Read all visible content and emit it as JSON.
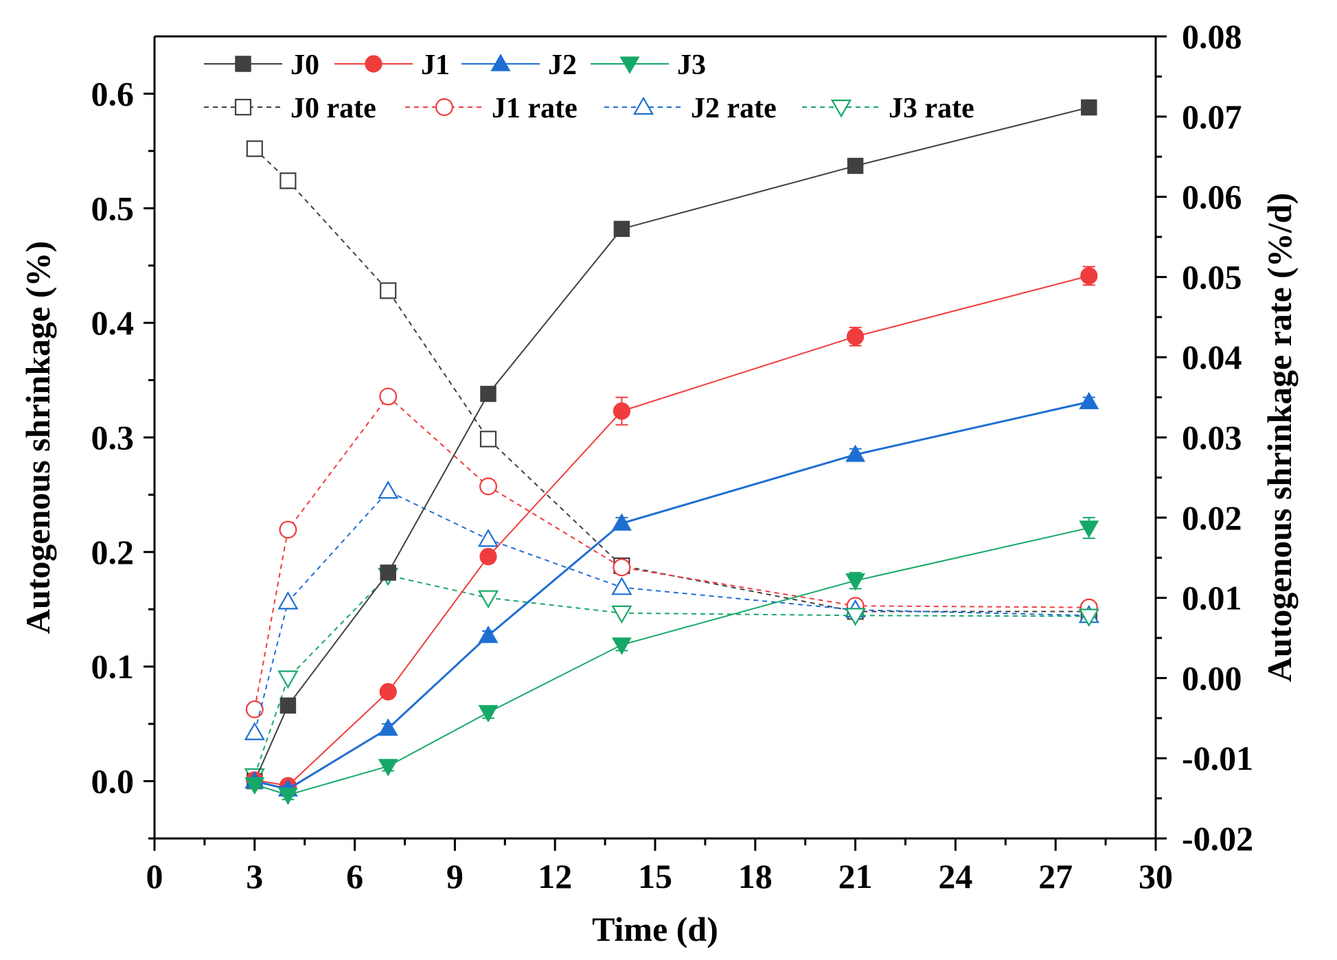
{
  "chart_data": {
    "type": "line",
    "title": "",
    "xlabel": "Time (d)",
    "ylabel": "Autogenous shrinkage (%)",
    "y2label": "Autogenous shrinkage rate (%/d)",
    "xlim": [
      0,
      30
    ],
    "ylim": [
      -0.05,
      0.65
    ],
    "y2lim": [
      -0.02,
      0.08
    ],
    "x_ticks": [
      0,
      3,
      6,
      9,
      12,
      15,
      18,
      21,
      24,
      27,
      30
    ],
    "y_ticks": [
      0.0,
      0.1,
      0.2,
      0.3,
      0.4,
      0.5,
      0.6
    ],
    "y_tick_labels": [
      "0.0",
      "0.1",
      "0.2",
      "0.3",
      "0.4",
      "0.5",
      "0.6"
    ],
    "y2_ticks": [
      -0.02,
      -0.01,
      0.0,
      0.01,
      0.02,
      0.03,
      0.04,
      0.05,
      0.06,
      0.07,
      0.08
    ],
    "y2_tick_labels": [
      "-0.02",
      "-0.01",
      "0.00",
      "0.01",
      "0.02",
      "0.03",
      "0.04",
      "0.05",
      "0.06",
      "0.07",
      "0.08"
    ],
    "grid": false,
    "legend_position": "top-left",
    "series": [
      {
        "name": "J0",
        "axis": "left",
        "color": "#404040",
        "marker": "square",
        "filled": true,
        "dashed": false,
        "x": [
          3,
          4,
          7,
          10,
          14,
          21,
          28
        ],
        "values": [
          0.0,
          0.066,
          0.182,
          0.338,
          0.482,
          0.537,
          0.588
        ],
        "errors": [
          0.003,
          0.004,
          0.004,
          0.005,
          0.005,
          0.004,
          0.004
        ]
      },
      {
        "name": "J1",
        "axis": "left",
        "color": "#f03c3c",
        "marker": "circle",
        "filled": true,
        "dashed": false,
        "x": [
          3,
          4,
          7,
          10,
          14,
          21,
          28
        ],
        "values": [
          0.001,
          -0.004,
          0.078,
          0.196,
          0.323,
          0.388,
          0.441
        ],
        "errors": [
          0.003,
          0.004,
          0.004,
          0.005,
          0.012,
          0.008,
          0.008
        ]
      },
      {
        "name": "J2",
        "axis": "left",
        "color": "#1e6fd2",
        "marker": "triangle-up",
        "filled": true,
        "dashed": false,
        "x": [
          3,
          4,
          7,
          10,
          14,
          21,
          28
        ],
        "values": [
          0.0,
          -0.007,
          0.046,
          0.127,
          0.225,
          0.285,
          0.331
        ],
        "errors": [
          0.003,
          0.003,
          0.004,
          0.004,
          0.005,
          0.005,
          0.004
        ]
      },
      {
        "name": "J3",
        "axis": "left",
        "color": "#16a868",
        "marker": "triangle-down",
        "filled": true,
        "dashed": false,
        "x": [
          3,
          4,
          7,
          10,
          14,
          21,
          28
        ],
        "values": [
          -0.003,
          -0.012,
          0.013,
          0.06,
          0.119,
          0.175,
          0.221
        ],
        "errors": [
          0.003,
          0.004,
          0.004,
          0.005,
          0.005,
          0.007,
          0.009
        ]
      },
      {
        "name": "J0 rate",
        "axis": "right",
        "color": "#404040",
        "marker": "square",
        "filled": false,
        "dashed": true,
        "x": [
          3,
          4,
          7,
          10,
          14,
          21,
          28
        ],
        "values": [
          0.066,
          0.062,
          0.0483,
          0.0298,
          0.014,
          0.0083,
          0.0083
        ]
      },
      {
        "name": "J1 rate",
        "axis": "right",
        "color": "#f03c3c",
        "marker": "circle",
        "filled": false,
        "dashed": true,
        "x": [
          3,
          4,
          7,
          10,
          14,
          21,
          28
        ],
        "values": [
          -0.0039,
          0.0185,
          0.0351,
          0.0239,
          0.0138,
          0.009,
          0.0088
        ]
      },
      {
        "name": "J2 rate",
        "axis": "right",
        "color": "#1e6fd2",
        "marker": "triangle-up",
        "filled": false,
        "dashed": true,
        "x": [
          3,
          4,
          7,
          10,
          14,
          21,
          28
        ],
        "values": [
          -0.0068,
          0.0095,
          0.0233,
          0.0173,
          0.0113,
          0.0085,
          0.0078
        ]
      },
      {
        "name": "J3 rate",
        "axis": "right",
        "color": "#16a868",
        "marker": "triangle-down",
        "filled": false,
        "dashed": true,
        "x": [
          3,
          4,
          7,
          10,
          14,
          21,
          28
        ],
        "values": [
          -0.0122,
          0.0,
          0.0128,
          0.01,
          0.0081,
          0.0078,
          0.0077
        ]
      }
    ]
  }
}
